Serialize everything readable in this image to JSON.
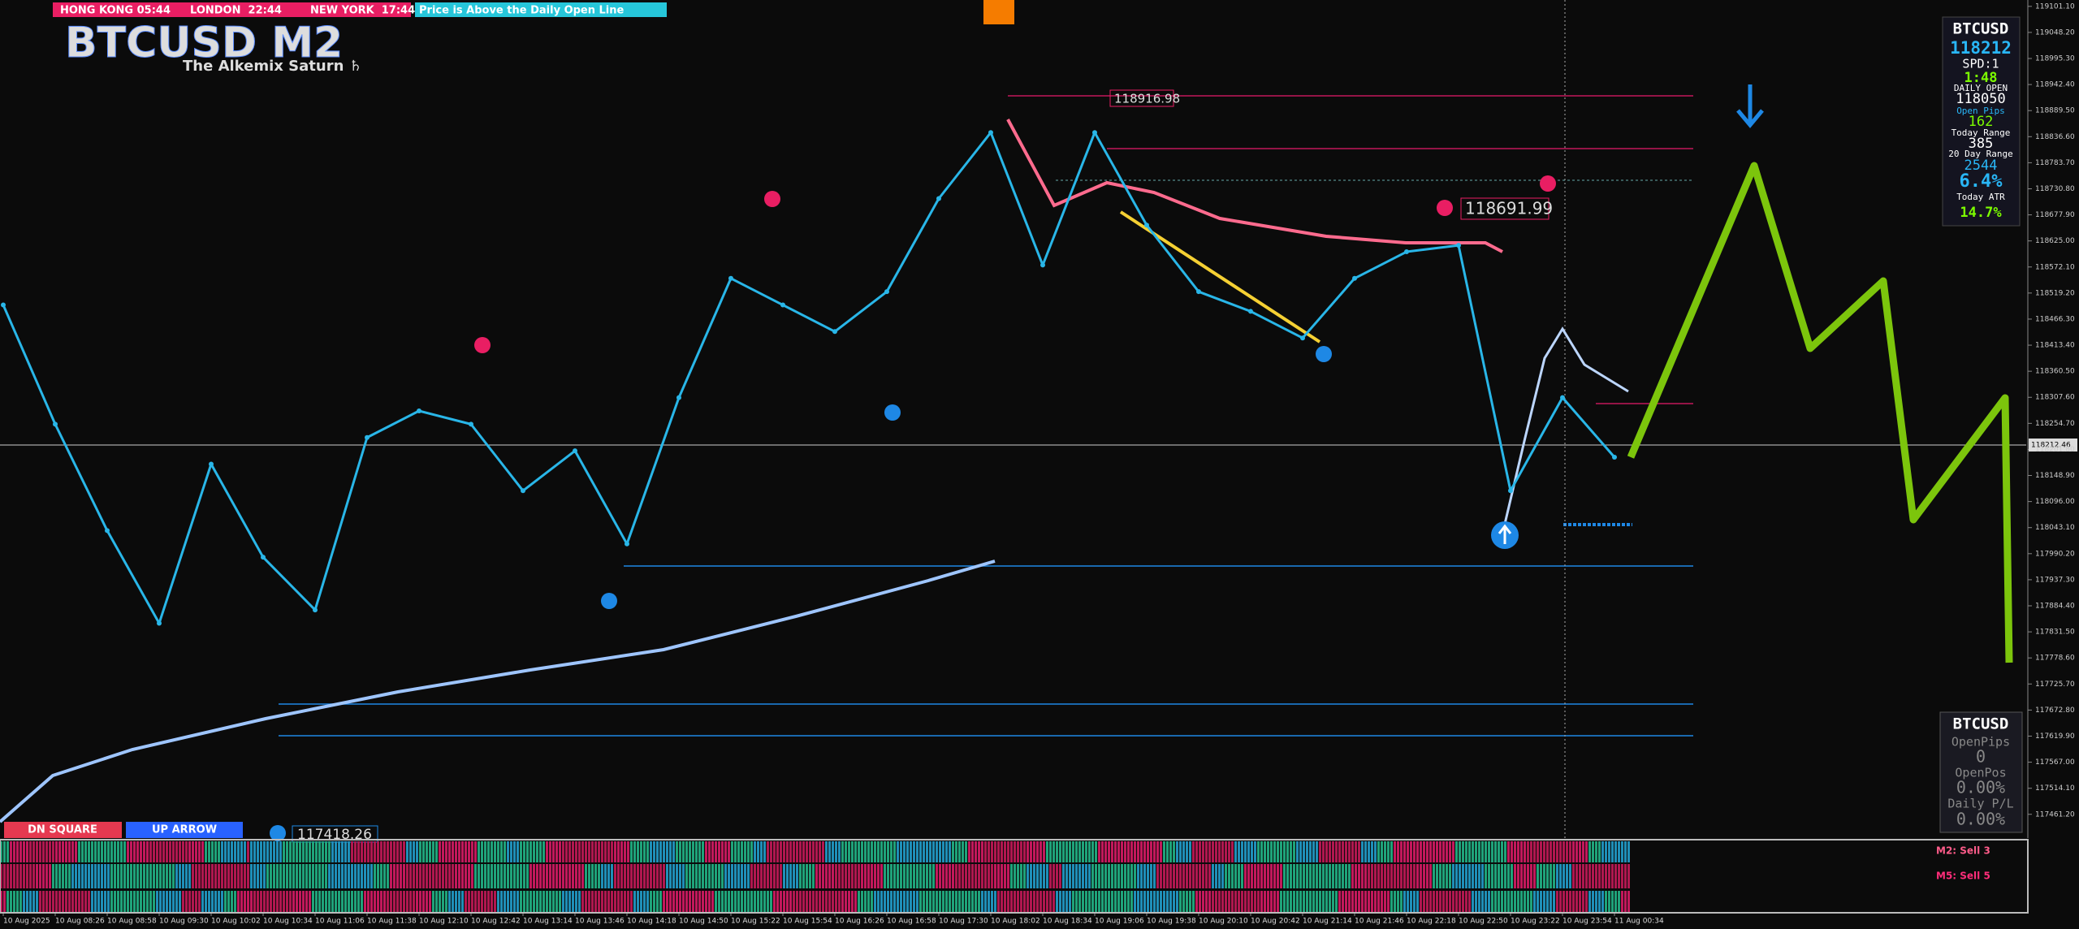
{
  "chart_data": {
    "type": "line",
    "title": "BTCUSD M2",
    "subtitle": "The Alkemix Saturn ♄",
    "categories": [
      "10 Aug 2025",
      "10 Aug 08:26",
      "10 Aug 08:58",
      "10 Aug 09:30",
      "10 Aug 10:02",
      "10 Aug 10:34",
      "10 Aug 11:06",
      "10 Aug 11:38",
      "10 Aug 12:10",
      "10 Aug 12:42",
      "10 Aug 13:14",
      "10 Aug 13:46",
      "10 Aug 14:18",
      "10 Aug 14:50",
      "10 Aug 15:22",
      "10 Aug 15:54",
      "10 Aug 16:26",
      "10 Aug 16:58",
      "10 Aug 17:30",
      "10 Aug 18:02",
      "10 Aug 18:34",
      "10 Aug 19:06",
      "10 Aug 19:38",
      "10 Aug 20:10",
      "10 Aug 20:42",
      "10 Aug 21:14",
      "10 Aug 21:46",
      "10 Aug 22:18",
      "10 Aug 22:50",
      "10 Aug 23:22",
      "10 Aug 23:54",
      "11 Aug 00:34"
    ],
    "values": [
      118495,
      118253,
      118037,
      117849,
      118172,
      117983,
      117876,
      118226,
      118280,
      118253,
      118118,
      118199,
      118010,
      118307,
      118549,
      118495,
      118441,
      118522,
      118711,
      118845,
      118576,
      118845,
      118657,
      118522,
      118482,
      118428,
      118549,
      118603,
      118616,
      118118,
      118307,
      118186
    ],
    "color": "#29b6e8",
    "ylim": [
      117413,
      119114
    ],
    "yticks": [
      {
        "value": 119101.1,
        "label": "119101.10"
      },
      {
        "value": 119048.2,
        "label": "119048.20"
      },
      {
        "value": 118995.3,
        "label": "118995.30"
      },
      {
        "value": 118942.4,
        "label": "118942.40"
      },
      {
        "value": 118889.5,
        "label": "118889.50"
      },
      {
        "value": 118836.6,
        "label": "118836.60"
      },
      {
        "value": 118783.7,
        "label": "118783.70"
      },
      {
        "value": 118730.8,
        "label": "118730.80"
      },
      {
        "value": 118677.9,
        "label": "118677.90"
      },
      {
        "value": 118625,
        "label": "118625.00"
      },
      {
        "value": 118572.1,
        "label": "118572.10"
      },
      {
        "value": 118519.2,
        "label": "118519.20"
      },
      {
        "value": 118466.3,
        "label": "118466.30"
      },
      {
        "value": 118413.4,
        "label": "118413.40"
      },
      {
        "value": 118360.5,
        "label": "118360.50"
      },
      {
        "value": 118307.6,
        "label": "118307.60"
      },
      {
        "value": 118254.7,
        "label": "118254.70"
      },
      {
        "value": 118201.8,
        "label": "118201.80"
      },
      {
        "value": 118148.9,
        "label": "118148.90"
      },
      {
        "value": 118096,
        "label": "118096.00"
      },
      {
        "value": 118043.1,
        "label": "118043.10"
      },
      {
        "value": 117990.2,
        "label": "117990.20"
      },
      {
        "value": 117937.3,
        "label": "117937.30"
      },
      {
        "value": 117884.4,
        "label": "117884.40"
      },
      {
        "value": 117831.5,
        "label": "117831.50"
      },
      {
        "value": 117778.6,
        "label": "117778.60"
      },
      {
        "value": 117725.7,
        "label": "117725.70"
      },
      {
        "value": 117672.8,
        "label": "117672.80"
      },
      {
        "value": 117619.9,
        "label": "117619.90"
      },
      {
        "value": 117567,
        "label": "117567.00"
      },
      {
        "value": 117514.1,
        "label": "117514.10"
      },
      {
        "value": 117461.2,
        "label": "117461.20"
      }
    ],
    "current_price_label": "118212.46",
    "annotations": [
      "118916.98",
      "118691.99",
      "117418.26"
    ],
    "sessions": [
      "HONG KONG 05:44",
      "LONDON  22:44",
      "NEW YORK  17:44"
    ],
    "status": "Price is Above the Daily Open Line",
    "buttons": [
      "DN SQUARE",
      "UP ARROW"
    ],
    "signals": [
      "M2: Sell 3",
      "M5: Sell 5"
    ]
  },
  "info_panel": [
    "BTCUSD",
    "118212",
    "SPD:1",
    "1:48",
    "DAILY OPEN",
    "118050",
    "Open Pips",
    "162",
    "Today Range",
    "385",
    "20 Day Range",
    "2544",
    "6.4%",
    "Today ATR",
    "14.7%"
  ],
  "account_panel": [
    "BTCUSD",
    "OpenPips",
    "0",
    "OpenPos",
    "0.00%",
    "Daily P/L",
    "0.00%"
  ]
}
